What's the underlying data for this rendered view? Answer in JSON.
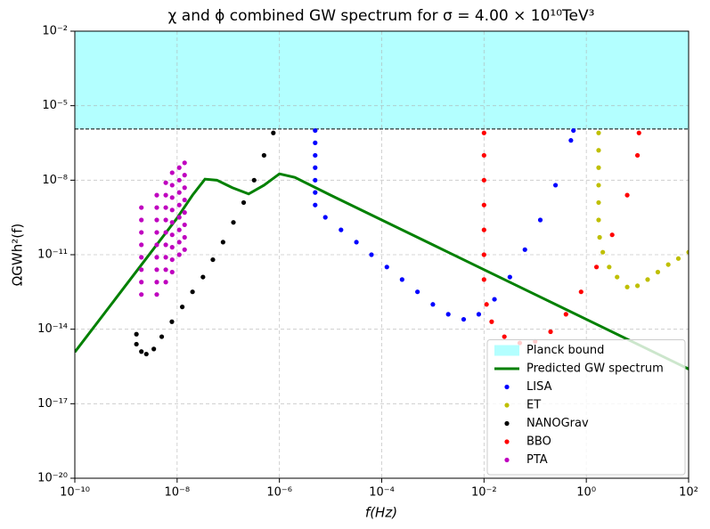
{
  "chart_data": {
    "type": "scatter",
    "title": "χ and ϕ combined GW spectrum for σ = 4.00 × 10¹⁰TeV³",
    "x_label": "f(Hz)",
    "y_label": "ΩGWh²(f)",
    "xscale": "log",
    "yscale": "log",
    "xlim": [
      1e-10,
      100
    ],
    "ylim": [
      1e-20,
      0.01
    ],
    "xticks": [
      {
        "value": 1e-10,
        "label": "10⁻¹⁰"
      },
      {
        "value": 1e-08,
        "label": "10⁻⁸"
      },
      {
        "value": 1e-06,
        "label": "10⁻⁶"
      },
      {
        "value": 0.0001,
        "label": "10⁻⁴"
      },
      {
        "value": 0.01,
        "label": "10⁻²"
      },
      {
        "value": 1,
        "label": "10⁰"
      },
      {
        "value": 100,
        "label": "10²"
      }
    ],
    "yticks": [
      {
        "value": 1e-20,
        "label": "10⁻²⁰"
      },
      {
        "value": 1e-17,
        "label": "10⁻¹⁷"
      },
      {
        "value": 1e-14,
        "label": "10⁻¹⁴"
      },
      {
        "value": 1e-11,
        "label": "10⁻¹¹"
      },
      {
        "value": 1e-08,
        "label": "10⁻⁸"
      },
      {
        "value": 1e-05,
        "label": "10⁻⁵"
      },
      {
        "value": 0.01,
        "label": "10⁻²"
      }
    ],
    "grid": true,
    "legend": "lower right",
    "planck_bound": {
      "name": "Planck bound",
      "value": 1.15e-06,
      "color": "#b3ffff"
    },
    "series": [
      {
        "name": "Predicted GW spectrum",
        "type": "line",
        "color": "#008000",
        "x": [
          1e-10,
          1e-09,
          1e-08,
          2e-08,
          3.5e-08,
          6e-08,
          1.2e-07,
          2.5e-07,
          5e-07,
          1e-06,
          2e-06,
          1e-05,
          0.0001,
          0.001,
          0.01,
          0.1,
          1,
          10,
          100
        ],
        "values": [
          1.2e-15,
          6e-13,
          3e-10,
          2.5e-09,
          1.1e-08,
          1e-08,
          5e-09,
          2.8e-09,
          6.3e-09,
          1.8e-08,
          1.3e-08,
          2.5e-09,
          2.5e-10,
          2.5e-11,
          2.5e-12,
          2.5e-13,
          2.5e-14,
          2.5e-15,
          2.5e-16
        ]
      },
      {
        "name": "LISA",
        "type": "scatter",
        "color": "#0000ff",
        "x": [
          5e-06,
          5e-06,
          5e-06,
          5e-06,
          5e-06,
          5e-06,
          5e-06,
          7.9e-06,
          1.6e-05,
          3.2e-05,
          6.3e-05,
          0.000126,
          0.00025,
          0.0005,
          0.001,
          0.002,
          0.004,
          0.0079,
          0.016,
          0.032,
          0.063,
          0.126,
          0.25,
          0.5,
          0.56
        ],
        "values": [
          1e-06,
          3.2e-07,
          1e-07,
          3.2e-08,
          1e-08,
          3.2e-09,
          1e-09,
          3.2e-10,
          1e-10,
          3.2e-11,
          1e-11,
          3.2e-12,
          1e-12,
          3.2e-13,
          1e-13,
          4e-14,
          2.5e-14,
          4e-14,
          1.6e-13,
          1.26e-12,
          1.6e-11,
          2.5e-10,
          6.3e-09,
          4e-07,
          1e-06
        ]
      },
      {
        "name": "ET",
        "type": "scatter",
        "color": "#bfbf00",
        "x": [
          1.74,
          1.74,
          1.74,
          1.74,
          1.74,
          1.74,
          1.82,
          2.1,
          2.8,
          4,
          6.3,
          10,
          15.8,
          25,
          40,
          63,
          100
        ],
        "values": [
          8e-07,
          1.6e-07,
          3.2e-08,
          6.3e-09,
          1.26e-09,
          2.5e-10,
          5e-11,
          1.26e-11,
          3.2e-12,
          1.26e-12,
          5e-13,
          5.6e-13,
          1e-12,
          2e-12,
          4e-12,
          7e-12,
          1.26e-11
        ]
      },
      {
        "name": "NANOGrav",
        "type": "scatter",
        "color": "#000000",
        "x": [
          1.6e-09,
          1.6e-09,
          2e-09,
          2.5e-09,
          3.5e-09,
          5e-09,
          7.9e-09,
          1.26e-08,
          2e-08,
          3.2e-08,
          5e-08,
          7.9e-08,
          1.26e-07,
          2e-07,
          3.2e-07,
          5e-07,
          7.6e-07
        ],
        "values": [
          6.3e-15,
          2.5e-15,
          1.26e-15,
          1e-15,
          1.6e-15,
          5e-15,
          2e-14,
          7.9e-14,
          3.2e-13,
          1.26e-12,
          6.3e-12,
          3.2e-11,
          2e-10,
          1.26e-09,
          1e-08,
          1e-07,
          8e-07
        ]
      },
      {
        "name": "BBO",
        "type": "scatter",
        "color": "#ff0000",
        "x": [
          0.01,
          0.01,
          0.01,
          0.01,
          0.01,
          0.01,
          0.01,
          0.0112,
          0.0141,
          0.025,
          0.05,
          0.1,
          0.2,
          0.4,
          0.79,
          1.58,
          3.2,
          6.3,
          10,
          10.7
        ],
        "values": [
          8e-07,
          1e-07,
          1e-08,
          1e-09,
          1e-10,
          1e-11,
          1e-12,
          1e-13,
          2e-14,
          5e-15,
          2.8e-15,
          3.2e-15,
          7.9e-15,
          4e-14,
          3.2e-13,
          3.2e-12,
          6.3e-11,
          2.5e-09,
          1e-07,
          8e-07
        ]
      },
      {
        "name": "PTA",
        "type": "scatter",
        "color": "#bf00bf",
        "x": [
          2e-09,
          2e-09,
          2e-09,
          2e-09,
          2e-09,
          2e-09,
          2e-09,
          2e-09,
          4e-09,
          4e-09,
          4e-09,
          4e-09,
          4e-09,
          4e-09,
          4e-09,
          4e-09,
          4e-09,
          6e-09,
          6e-09,
          6e-09,
          6e-09,
          6e-09,
          6e-09,
          6e-09,
          6e-09,
          6e-09,
          8e-09,
          8e-09,
          8e-09,
          8e-09,
          8e-09,
          8e-09,
          8e-09,
          8e-09,
          8e-09,
          1.1e-08,
          1.1e-08,
          1.1e-08,
          1.1e-08,
          1.1e-08,
          1.1e-08,
          1.1e-08,
          1.1e-08,
          1.4e-08,
          1.4e-08,
          1.4e-08,
          1.4e-08,
          1.4e-08,
          1.4e-08,
          1.4e-08,
          1.4e-08
        ],
        "values": [
          7.9e-10,
          2.5e-10,
          7.9e-11,
          2.5e-11,
          7.9e-12,
          2.5e-12,
          7.9e-13,
          2.5e-13,
          2.5e-09,
          7.9e-10,
          2.5e-10,
          7.9e-11,
          2.5e-11,
          7.9e-12,
          2.5e-12,
          7.9e-13,
          2.5e-13,
          7.9e-09,
          2.5e-09,
          7.9e-10,
          2.5e-10,
          7.9e-11,
          2.5e-11,
          7.9e-12,
          2.5e-12,
          7.9e-13,
          2e-08,
          6.3e-09,
          2e-09,
          6.3e-10,
          2e-10,
          6.3e-11,
          2e-11,
          6.3e-12,
          2e-12,
          3.2e-08,
          1e-08,
          3.2e-09,
          1e-09,
          3.2e-10,
          1e-10,
          3.2e-11,
          1e-11,
          5e-08,
          1.6e-08,
          5e-09,
          1.6e-09,
          5e-10,
          1.6e-10,
          5e-11,
          1.6e-11
        ]
      }
    ]
  }
}
